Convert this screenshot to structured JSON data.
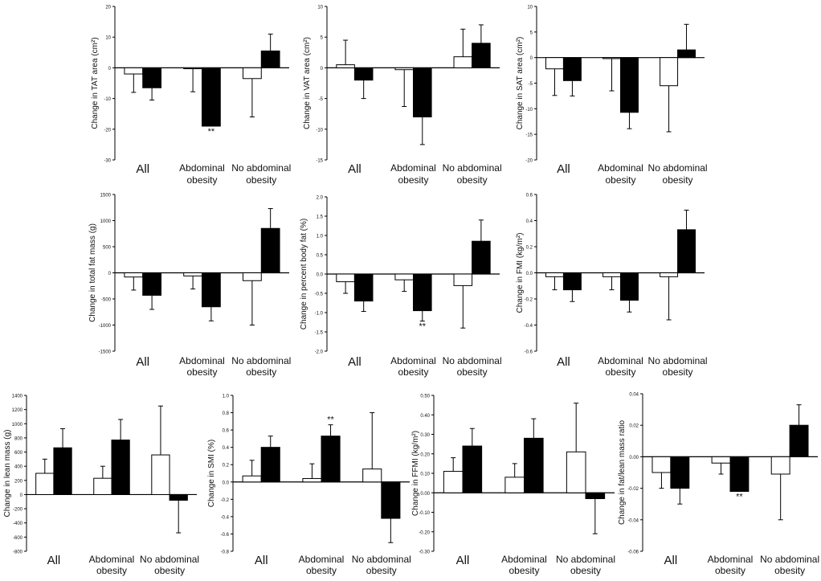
{
  "chart_data": [
    {
      "type": "bar",
      "ylabel": "Change in TAT area (cm²)",
      "ylim": [
        -30,
        20
      ],
      "yticks": [
        -30,
        -20,
        -10,
        0,
        10,
        20
      ],
      "categories": [
        "All",
        "Abdominal obesity",
        "No abdominal obesity"
      ],
      "series": [
        {
          "fill": "#ffffff",
          "values": [
            -2,
            -0.3,
            -3.5
          ],
          "errors": [
            6,
            7.5,
            12.5
          ]
        },
        {
          "fill": "#000000",
          "values": [
            -6.5,
            -19,
            5.5
          ],
          "errors": [
            4,
            0,
            5.5
          ]
        }
      ],
      "annotations": [
        {
          "text": "**",
          "category": 1,
          "series": 1
        }
      ]
    },
    {
      "type": "bar",
      "ylabel": "Change in VAT area (cm²)",
      "ylim": [
        -15,
        10
      ],
      "yticks": [
        -15,
        -10,
        -5,
        0,
        5,
        10
      ],
      "categories": [
        "All",
        "Abdominal obesity",
        "No abdominal obesity"
      ],
      "series": [
        {
          "fill": "#ffffff",
          "values": [
            0.5,
            -0.3,
            1.8
          ],
          "errors": [
            4,
            6,
            4.5
          ]
        },
        {
          "fill": "#000000",
          "values": [
            -2,
            -8,
            4
          ],
          "errors": [
            3,
            4.5,
            3
          ]
        }
      ],
      "annotations": []
    },
    {
      "type": "bar",
      "ylabel": "Change in SAT area (cm²)",
      "ylim": [
        -20,
        10
      ],
      "yticks": [
        -20,
        -15,
        -10,
        -5,
        0,
        5,
        10
      ],
      "categories": [
        "All",
        "Abdominal obesity",
        "No abdominal obesity"
      ],
      "series": [
        {
          "fill": "#ffffff",
          "values": [
            -2.2,
            -0.2,
            -5.5
          ],
          "errors": [
            5.2,
            6.3,
            9
          ]
        },
        {
          "fill": "#000000",
          "values": [
            -4.5,
            -10.7,
            1.5
          ],
          "errors": [
            3,
            3.2,
            5
          ]
        }
      ],
      "annotations": []
    },
    {
      "type": "bar",
      "ylabel": "Change in total fat mass (g)",
      "ylim": [
        -1500,
        1500
      ],
      "yticks": [
        -1500,
        -1000,
        -500,
        0,
        500,
        1000,
        1500
      ],
      "categories": [
        "All",
        "Abdominal obesity",
        "No abdominal obesity"
      ],
      "series": [
        {
          "fill": "#ffffff",
          "values": [
            -80,
            -60,
            -150
          ],
          "errors": [
            250,
            250,
            850
          ]
        },
        {
          "fill": "#000000",
          "values": [
            -430,
            -650,
            850
          ],
          "errors": [
            270,
            270,
            380
          ]
        }
      ],
      "annotations": []
    },
    {
      "type": "bar",
      "ylabel": "Change in percent body fat (%)",
      "ylim": [
        -2,
        2
      ],
      "yticks": [
        -2.0,
        -1.5,
        -1.0,
        -0.5,
        0.0,
        0.5,
        1.0,
        1.5,
        2.0
      ],
      "categories": [
        "All",
        "Abdominal obesity",
        "No abdominal obesity"
      ],
      "series": [
        {
          "fill": "#ffffff",
          "values": [
            -0.2,
            -0.15,
            -0.3
          ],
          "errors": [
            0.3,
            0.3,
            1.1
          ]
        },
        {
          "fill": "#000000",
          "values": [
            -0.7,
            -0.95,
            0.85
          ],
          "errors": [
            0.27,
            0.27,
            0.55
          ]
        }
      ],
      "annotations": [
        {
          "text": "**",
          "category": 1,
          "series": 1
        }
      ]
    },
    {
      "type": "bar",
      "ylabel": "Change in FMI (kg/m²)",
      "ylim": [
        -0.6,
        0.6
      ],
      "yticks": [
        -0.6,
        -0.4,
        -0.2,
        0.0,
        0.2,
        0.4,
        0.6
      ],
      "categories": [
        "All",
        "Abdominal obesity",
        "No abdominal obesity"
      ],
      "series": [
        {
          "fill": "#ffffff",
          "values": [
            -0.03,
            -0.03,
            -0.03
          ],
          "errors": [
            0.1,
            0.1,
            0.33
          ]
        },
        {
          "fill": "#000000",
          "values": [
            -0.13,
            -0.21,
            0.33
          ],
          "errors": [
            0.09,
            0.09,
            0.15
          ]
        }
      ],
      "annotations": []
    },
    {
      "type": "bar",
      "ylabel": "Change in lean mass (g)",
      "ylim": [
        -800,
        1400
      ],
      "yticks": [
        -800,
        -600,
        -400,
        -200,
        0,
        200,
        400,
        600,
        800,
        1000,
        1200,
        1400
      ],
      "categories": [
        "All",
        "Abdominal obesity",
        "No abdominal obesity"
      ],
      "series": [
        {
          "fill": "#ffffff",
          "values": [
            300,
            230,
            560
          ],
          "errors": [
            200,
            170,
            690
          ]
        },
        {
          "fill": "#000000",
          "values": [
            660,
            770,
            -80
          ],
          "errors": [
            270,
            290,
            460
          ]
        }
      ],
      "annotations": []
    },
    {
      "type": "bar",
      "ylabel": "Change in SMI (%)",
      "ylim": [
        -0.8,
        1.0
      ],
      "yticks": [
        -0.8,
        -0.6,
        -0.4,
        -0.2,
        0.0,
        0.2,
        0.4,
        0.6,
        0.8,
        1.0
      ],
      "categories": [
        "All",
        "Abdominal obesity",
        "No abdominal obesity"
      ],
      "series": [
        {
          "fill": "#ffffff",
          "values": [
            0.07,
            0.04,
            0.15
          ],
          "errors": [
            0.18,
            0.17,
            0.65
          ]
        },
        {
          "fill": "#000000",
          "values": [
            0.4,
            0.53,
            -0.42
          ],
          "errors": [
            0.13,
            0.13,
            0.28
          ]
        }
      ],
      "annotations": [
        {
          "text": "**",
          "category": 1,
          "series": 1
        }
      ]
    },
    {
      "type": "bar",
      "ylabel": "Change in FFMI (kg/m²)",
      "ylim": [
        -0.3,
        0.5
      ],
      "yticks": [
        -0.3,
        -0.2,
        -0.1,
        0.0,
        0.1,
        0.2,
        0.3,
        0.4,
        0.5
      ],
      "categories": [
        "All",
        "Abdominal obesity",
        "No abdominal obesity"
      ],
      "series": [
        {
          "fill": "#ffffff",
          "values": [
            0.11,
            0.08,
            0.21
          ],
          "errors": [
            0.07,
            0.07,
            0.25
          ]
        },
        {
          "fill": "#000000",
          "values": [
            0.24,
            0.28,
            -0.03
          ],
          "errors": [
            0.09,
            0.1,
            0.18
          ]
        }
      ],
      "annotations": []
    },
    {
      "type": "bar",
      "ylabel": "Change in fat/lean mass ratio",
      "ylim": [
        -0.06,
        0.04
      ],
      "yticks": [
        -0.06,
        -0.04,
        -0.02,
        0.0,
        0.02,
        0.04
      ],
      "categories": [
        "All",
        "Abdominal obesity",
        "No abdominal obesity"
      ],
      "series": [
        {
          "fill": "#ffffff",
          "values": [
            -0.01,
            -0.004,
            -0.011
          ],
          "errors": [
            0.01,
            0.007,
            0.029
          ]
        },
        {
          "fill": "#000000",
          "values": [
            -0.02,
            -0.022,
            0.02
          ],
          "errors": [
            0.01,
            0.0,
            0.013
          ]
        }
      ],
      "annotations": [
        {
          "text": "**",
          "category": 1,
          "series": 1
        }
      ]
    }
  ]
}
